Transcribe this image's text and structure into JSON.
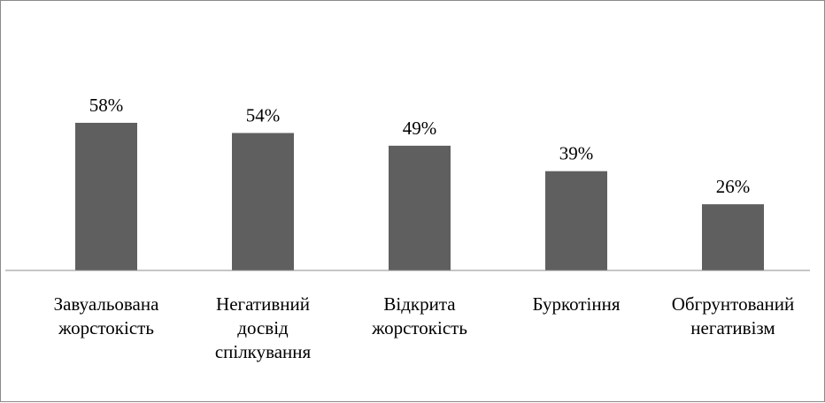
{
  "chart_data": {
    "type": "bar",
    "categories": [
      [
        "Завуальована",
        "жорстокість"
      ],
      [
        "Негативний",
        "досвід",
        "спілкування"
      ],
      [
        "Відкрита",
        "жорстокість"
      ],
      [
        "Буркотіння"
      ],
      [
        "Обгрунтований",
        "негативізм"
      ]
    ],
    "values": [
      58,
      54,
      49,
      39,
      26
    ],
    "data_labels": [
      "58%",
      "54%",
      "49%",
      "39%",
      "26%"
    ],
    "ylim": [
      0,
      100
    ],
    "grid": false,
    "legend": "none",
    "bar_color": "#5f5f5f"
  }
}
